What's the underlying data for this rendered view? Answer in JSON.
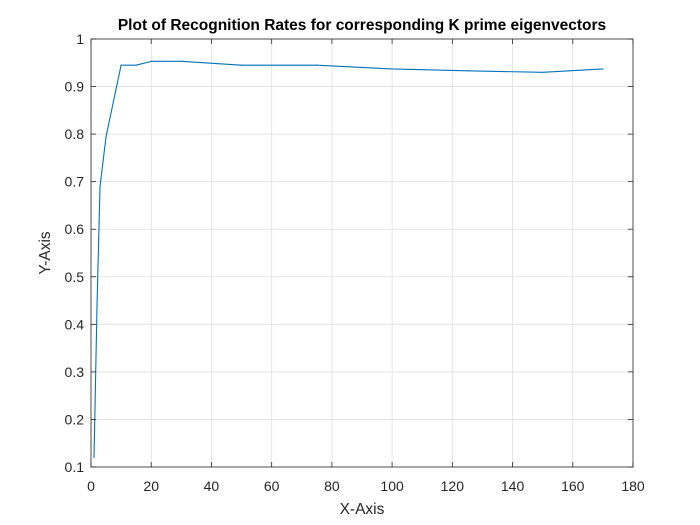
{
  "chart_data": {
    "type": "line",
    "title": "Plot of Recognition Rates for corresponding K prime eigenvectors",
    "xlabel": "X-Axis",
    "ylabel": "Y-Axis",
    "xlim": [
      0,
      180
    ],
    "ylim": [
      0.1,
      1
    ],
    "xticks": [
      0,
      20,
      40,
      60,
      80,
      100,
      120,
      140,
      160,
      180
    ],
    "xtick_labels": [
      "0",
      "20",
      "40",
      "60",
      "80",
      "100",
      "120",
      "140",
      "160",
      "180"
    ],
    "yticks": [
      0.1,
      0.2,
      0.3,
      0.4,
      0.5,
      0.6,
      0.7,
      0.8,
      0.9,
      1
    ],
    "ytick_labels": [
      "0.1",
      "0.2",
      "0.3",
      "0.4",
      "0.5",
      "0.6",
      "0.7",
      "0.8",
      "0.9",
      "1"
    ],
    "grid": true,
    "series": [
      {
        "color": "#0072BD",
        "x": [
          1,
          2,
          3,
          5,
          10,
          15,
          20,
          30,
          50,
          75,
          100,
          125,
          150,
          170
        ],
        "y": [
          0.12,
          0.44,
          0.69,
          0.795,
          0.945,
          0.945,
          0.953,
          0.953,
          0.945,
          0.945,
          0.937,
          0.933,
          0.93,
          0.937
        ]
      }
    ]
  }
}
